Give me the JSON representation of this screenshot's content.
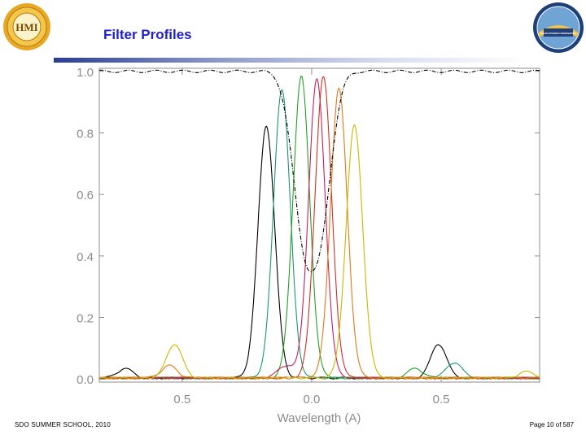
{
  "header": {
    "title": "Filter Profiles",
    "left_logo_icon": "hmi-sun-emblem-icon",
    "left_logo_text": "HMI",
    "right_logo_icon": "sdo-mission-patch-icon",
    "right_logo_text": "SOLAR DYNAMICS OBSERVATORY"
  },
  "footer": {
    "left": "SDO SUMMER SCHOOL, 2010",
    "right": "Page 10 of 587"
  },
  "chart_data": {
    "type": "line",
    "xlabel": "Wavelength  (A)",
    "ylabel": "",
    "xlim": [
      -0.82,
      0.88
    ],
    "ylim": [
      -0.01,
      1.01
    ],
    "x_ticks": [
      -0.5,
      0.0,
      0.5
    ],
    "x_tick_labels": [
      "0.5",
      "0.0",
      "0.5"
    ],
    "y_ticks": [
      0.0,
      0.2,
      0.4,
      0.6,
      0.8,
      1.0
    ],
    "y_tick_labels": [
      "0.0",
      "0.2",
      "0.4",
      "0.6",
      "0.8",
      "1.0"
    ],
    "grid": false,
    "legend": "none",
    "series": [
      {
        "color": "#000000",
        "peak_x": -0.175,
        "peak_y": 0.82,
        "secondary_peaks": [
          [
            -0.72,
            0.03
          ],
          [
            0.49,
            0.11
          ]
        ]
      },
      {
        "color": "#1a9a6a",
        "peak_x": -0.115,
        "peak_y": 0.94,
        "secondary_peaks": [
          [
            0.55,
            0.05
          ]
        ]
      },
      {
        "color": "#22a022",
        "peak_x": -0.04,
        "peak_y": 0.98,
        "secondary_peaks": [
          [
            0.4,
            0.03
          ]
        ]
      },
      {
        "color": "#c81e5a",
        "peak_x": 0.02,
        "peak_y": 0.97,
        "secondary_peaks": [
          [
            -0.1,
            0.04
          ]
        ]
      },
      {
        "color": "#d03020",
        "peak_x": 0.045,
        "peak_y": 0.98,
        "secondary_peaks": []
      },
      {
        "color": "#e07818",
        "peak_x": 0.105,
        "peak_y": 0.94,
        "secondary_peaks": [
          [
            -0.55,
            0.04
          ]
        ]
      },
      {
        "color": "#c8b800",
        "peak_x": 0.165,
        "peak_y": 0.82,
        "secondary_peaks": [
          [
            -0.53,
            0.11
          ],
          [
            0.83,
            0.02
          ]
        ]
      },
      {
        "color": "#000000",
        "dashed": true,
        "type": "line-core-profile",
        "min_x": 0.0,
        "min_y": 0.35,
        "continuum": 1.0
      }
    ]
  }
}
